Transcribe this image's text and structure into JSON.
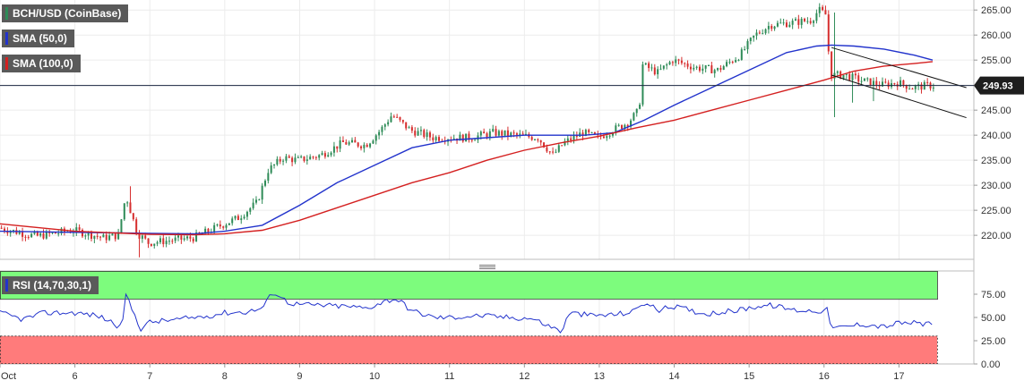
{
  "chart_data": {
    "type": "candlestick",
    "instrument_label": "BCH/USD (CoinBase)",
    "last_price_label": "249.93",
    "last_price": 249.93,
    "price_axis": {
      "ylim": [
        215.2,
        267
      ],
      "ticks": [
        "265.00",
        "260.00",
        "255.00",
        "250.00",
        "245.00",
        "240.00",
        "235.00",
        "230.00",
        "225.00",
        "220.00"
      ],
      "tick_values": [
        265,
        260,
        255,
        250,
        245,
        240,
        235,
        230,
        225,
        220
      ]
    },
    "x_axis": {
      "xlim": [
        5.0,
        18.0
      ],
      "tick_labels": [
        "Oct",
        "6",
        "7",
        "8",
        "9",
        "10",
        "11",
        "12",
        "13",
        "14",
        "15",
        "16",
        "17"
      ],
      "tick_positions": [
        5.0,
        6.0,
        7.0,
        8.0,
        9.0,
        10.0,
        11.0,
        12.0,
        13.0,
        14.0,
        15.0,
        16.0,
        17.0
      ]
    },
    "price_anchors": [
      [
        5.0,
        221.5
      ],
      [
        5.5,
        219.8
      ],
      [
        6.0,
        221.0
      ],
      [
        6.4,
        219.5
      ],
      [
        6.6,
        220.0
      ],
      [
        6.7,
        228.0
      ],
      [
        6.85,
        220.5
      ],
      [
        7.0,
        218.5
      ],
      [
        7.3,
        219.0
      ],
      [
        7.6,
        219.5
      ],
      [
        7.9,
        221.5
      ],
      [
        8.2,
        223.5
      ],
      [
        8.45,
        226.5
      ],
      [
        8.6,
        233.0
      ],
      [
        8.8,
        235.5
      ],
      [
        9.0,
        235.0
      ],
      [
        9.3,
        236.0
      ],
      [
        9.6,
        238.5
      ],
      [
        9.9,
        238.0
      ],
      [
        10.1,
        241.0
      ],
      [
        10.25,
        244.0
      ],
      [
        10.5,
        241.0
      ],
      [
        10.8,
        239.5
      ],
      [
        11.0,
        239.5
      ],
      [
        11.3,
        239.5
      ],
      [
        11.6,
        240.5
      ],
      [
        11.9,
        240.0
      ],
      [
        12.2,
        239.5
      ],
      [
        12.4,
        236.0
      ],
      [
        12.55,
        238.5
      ],
      [
        12.8,
        240.5
      ],
      [
        13.0,
        239.5
      ],
      [
        13.2,
        241.0
      ],
      [
        13.4,
        242.5
      ],
      [
        13.55,
        245.0
      ],
      [
        13.6,
        254.0
      ],
      [
        13.8,
        252.5
      ],
      [
        14.0,
        255.0
      ],
      [
        14.3,
        253.5
      ],
      [
        14.6,
        253.0
      ],
      [
        14.9,
        256.0
      ],
      [
        15.1,
        260.0
      ],
      [
        15.3,
        262.0
      ],
      [
        15.6,
        262.5
      ],
      [
        15.85,
        263.0
      ],
      [
        15.95,
        265.0
      ],
      [
        16.05,
        264.0
      ],
      [
        16.1,
        252.0
      ],
      [
        16.3,
        252.0
      ],
      [
        16.5,
        251.0
      ],
      [
        16.8,
        250.0
      ],
      [
        17.0,
        250.5
      ],
      [
        17.2,
        249.5
      ],
      [
        17.4,
        249.9
      ]
    ],
    "series": [
      {
        "name": "SMA (50,0)",
        "color": "#2233cc",
        "points": [
          [
            5.0,
            220.8
          ],
          [
            6.0,
            220.6
          ],
          [
            7.0,
            220.4
          ],
          [
            7.6,
            220.3
          ],
          [
            8.0,
            220.8
          ],
          [
            8.5,
            222.0
          ],
          [
            9.0,
            226.0
          ],
          [
            9.5,
            230.5
          ],
          [
            10.0,
            234.0
          ],
          [
            10.5,
            237.5
          ],
          [
            11.0,
            239.0
          ],
          [
            11.5,
            239.5
          ],
          [
            12.0,
            240.0
          ],
          [
            12.4,
            240.0
          ],
          [
            12.8,
            240.0
          ],
          [
            13.2,
            240.5
          ],
          [
            13.6,
            243.0
          ],
          [
            14.0,
            246.0
          ],
          [
            14.5,
            249.5
          ],
          [
            15.0,
            253.0
          ],
          [
            15.5,
            256.5
          ],
          [
            15.9,
            257.8
          ],
          [
            16.1,
            258.0
          ],
          [
            16.4,
            257.8
          ],
          [
            16.8,
            257.2
          ],
          [
            17.2,
            256.0
          ],
          [
            17.45,
            255.0
          ]
        ]
      },
      {
        "name": "SMA (100,0)",
        "color": "#d42020",
        "points": [
          [
            5.0,
            222.3
          ],
          [
            6.0,
            220.8
          ],
          [
            7.0,
            220.2
          ],
          [
            7.6,
            220.1
          ],
          [
            8.0,
            220.3
          ],
          [
            8.5,
            221.0
          ],
          [
            9.0,
            223.0
          ],
          [
            9.5,
            225.5
          ],
          [
            10.0,
            228.0
          ],
          [
            10.5,
            230.5
          ],
          [
            11.0,
            232.5
          ],
          [
            11.5,
            235.0
          ],
          [
            12.0,
            237.0
          ],
          [
            12.5,
            238.5
          ],
          [
            13.0,
            239.8
          ],
          [
            13.5,
            241.5
          ],
          [
            14.0,
            243.0
          ],
          [
            14.5,
            245.0
          ],
          [
            15.0,
            247.0
          ],
          [
            15.5,
            249.0
          ],
          [
            16.0,
            251.0
          ],
          [
            16.4,
            252.8
          ],
          [
            16.8,
            253.8
          ],
          [
            17.2,
            254.3
          ],
          [
            17.45,
            254.7
          ]
        ]
      }
    ],
    "channel_lines": [
      {
        "from": [
          16.1,
          257.5
        ],
        "to": [
          17.9,
          249.5
        ]
      },
      {
        "from": [
          16.1,
          252.0
        ],
        "to": [
          17.9,
          243.5
        ]
      }
    ],
    "rsi": {
      "label": "RSI (14,70,30,1)",
      "ylim": [
        0,
        100
      ],
      "overbought": 70,
      "oversold": 30,
      "ticks": [
        "75.00",
        "50.00",
        "25.00",
        "0.00"
      ],
      "tick_values": [
        75,
        50,
        25,
        0
      ],
      "overbought_color": "#7dfc7d",
      "oversold_color": "#ff7b7b",
      "line_color": "#2233cc",
      "anchors": [
        [
          5.0,
          55
        ],
        [
          5.3,
          48
        ],
        [
          5.6,
          55
        ],
        [
          6.0,
          55
        ],
        [
          6.3,
          52
        ],
        [
          6.5,
          45
        ],
        [
          6.62,
          38
        ],
        [
          6.68,
          74
        ],
        [
          6.8,
          52
        ],
        [
          6.88,
          38
        ],
        [
          7.0,
          45
        ],
        [
          7.4,
          48
        ],
        [
          7.8,
          52
        ],
        [
          8.0,
          55
        ],
        [
          8.3,
          56
        ],
        [
          8.5,
          60
        ],
        [
          8.65,
          78
        ],
        [
          8.85,
          66
        ],
        [
          9.0,
          64
        ],
        [
          9.3,
          63
        ],
        [
          9.6,
          62
        ],
        [
          9.9,
          60
        ],
        [
          10.15,
          68
        ],
        [
          10.3,
          70
        ],
        [
          10.5,
          57
        ],
        [
          10.8,
          50
        ],
        [
          11.0,
          50
        ],
        [
          11.4,
          52
        ],
        [
          11.8,
          50
        ],
        [
          12.1,
          49
        ],
        [
          12.35,
          40
        ],
        [
          12.5,
          35
        ],
        [
          12.6,
          55
        ],
        [
          12.9,
          52
        ],
        [
          13.2,
          53
        ],
        [
          13.45,
          56
        ],
        [
          13.58,
          66
        ],
        [
          13.8,
          58
        ],
        [
          14.0,
          62
        ],
        [
          14.4,
          54
        ],
        [
          14.8,
          57
        ],
        [
          15.1,
          62
        ],
        [
          15.3,
          63
        ],
        [
          15.6,
          58
        ],
        [
          15.9,
          57
        ],
        [
          16.05,
          58
        ],
        [
          16.1,
          38
        ],
        [
          16.3,
          40
        ],
        [
          16.5,
          43
        ],
        [
          16.8,
          40
        ],
        [
          17.0,
          44
        ],
        [
          17.2,
          44
        ],
        [
          17.45,
          42
        ]
      ]
    },
    "grid": true,
    "colors": {
      "up_candle": "#2e8b57",
      "down_candle": "#d62e2e",
      "current_price_line": "#1f2a44",
      "axis_badge": "#1e1e1e"
    }
  },
  "legend": {
    "title": "BCH/USD (CoinBase)",
    "sma50": "SMA (50,0)",
    "sma100": "SMA (100,0)",
    "rsi": "RSI (14,70,30,1)"
  }
}
